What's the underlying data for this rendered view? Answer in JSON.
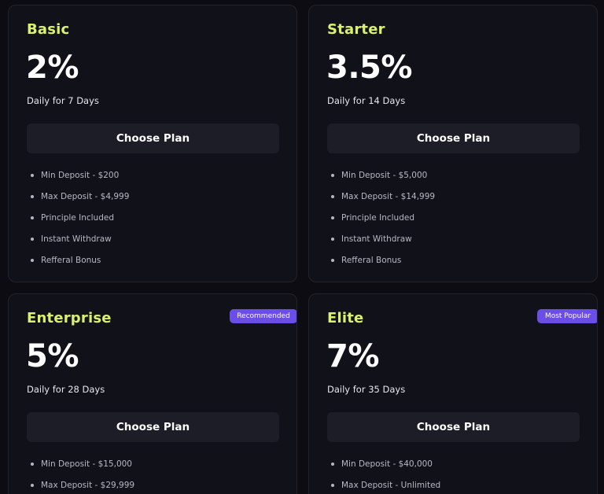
{
  "colors": {
    "background": "#0c0c12",
    "card": "#11111a",
    "plan_name": "#d9f26b",
    "button": "#1d1d28",
    "badge": "#6b4ee6"
  },
  "plans": [
    {
      "name": "Basic",
      "rate": "2%",
      "duration": "Daily for 7 Days",
      "button_label": "Choose Plan",
      "features": [
        "Min Deposit - $200",
        "Max Deposit - $4,999",
        "Principle Included",
        "Instant Withdraw",
        "Refferal Bonus"
      ]
    },
    {
      "name": "Starter",
      "rate": "3.5%",
      "duration": "Daily for 14 Days",
      "button_label": "Choose Plan",
      "features": [
        "Min Deposit - $5,000",
        "Max Deposit - $14,999",
        "Principle Included",
        "Instant Withdraw",
        "Refferal Bonus"
      ]
    },
    {
      "name": "Enterprise",
      "badge": "Recommended",
      "rate": "5%",
      "duration": "Daily for 28 Days",
      "button_label": "Choose Plan",
      "features": [
        "Min Deposit - $15,000",
        "Max Deposit - $29,999"
      ]
    },
    {
      "name": "Elite",
      "badge": "Most Popular",
      "rate": "7%",
      "duration": "Daily for 35 Days",
      "button_label": "Choose Plan",
      "features": [
        "Min Deposit - $40,000",
        "Max Deposit - Unlimited"
      ]
    }
  ]
}
